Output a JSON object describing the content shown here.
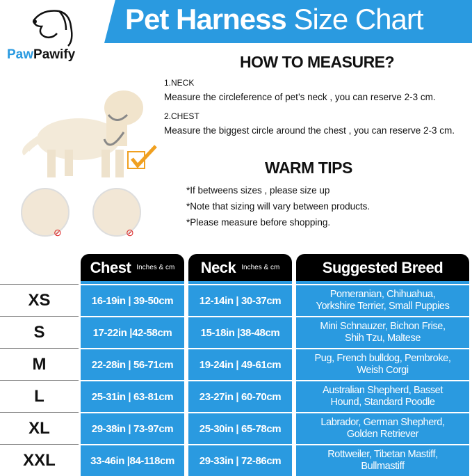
{
  "brand": {
    "part1": "Paw",
    "part2": "Pawify"
  },
  "title": {
    "bold": "Pet Harness",
    "light": "Size Chart"
  },
  "how_to_measure": {
    "heading": "HOW TO MEASURE?",
    "neck_label": "1.NECK",
    "neck_text": "Measure the circleference of pet’s neck , you can reserve 2-3 cm.",
    "chest_label": "2.CHEST",
    "chest_text": "Measure the biggest circle around the chest , you can reserve 2-3 cm."
  },
  "warm_tips": {
    "heading": "WARM TIPS",
    "tips": [
      "*If betweens sizes , please size up",
      "*Note that sizing will vary between products.",
      "*Please measure before shopping."
    ]
  },
  "table": {
    "headers": {
      "chest": "Chest",
      "chest_unit": "Inches & cm",
      "neck": "Neck",
      "neck_unit": "Inches & cm",
      "breed": "Suggested Breed"
    },
    "rows": [
      {
        "size": "XS",
        "chest": "16-19in | 39-50cm",
        "neck": "12-14in | 30-37cm",
        "breed1": "Pomeranian, Chihuahua,",
        "breed2": "Yorkshire Terrier, Small Puppies"
      },
      {
        "size": "S",
        "chest": "17-22in |42-58cm",
        "neck": "15-18in |38-48cm",
        "breed1": "Mini Schnauzer, Bichon Frise,",
        "breed2": "Shih Tzu, Maltese"
      },
      {
        "size": "M",
        "chest": "22-28in | 56-71cm",
        "neck": "19-24in | 49-61cm",
        "breed1": "Pug, French bulldog, Pembroke,",
        "breed2": "Weish Corgi"
      },
      {
        "size": "L",
        "chest": "25-31in | 63-81cm",
        "neck": "23-27in | 60-70cm",
        "breed1": "Australian Shepherd, Basset",
        "breed2": "Hound, Standard Poodle"
      },
      {
        "size": "XL",
        "chest": "29-38in | 73-97cm",
        "neck": "25-30in | 65-78cm",
        "breed1": "Labrador, German Shepherd,",
        "breed2": "Golden Retriever"
      },
      {
        "size": "XXL",
        "chest": "33-46in |84-118cm",
        "neck": "29-33in | 72-86cm",
        "breed1": "Rottweiler, Tibetan Mastiff,",
        "breed2": "Bullmastiff"
      }
    ]
  },
  "colors": {
    "accent": "#2a9ae0",
    "header": "#000000"
  }
}
